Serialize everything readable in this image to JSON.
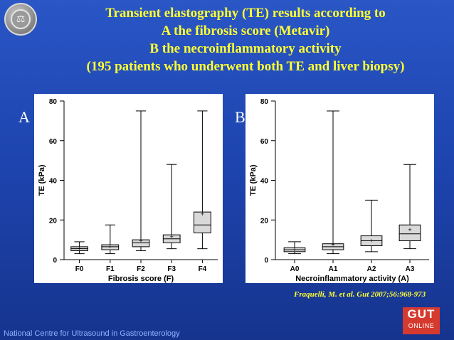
{
  "title_lines": [
    "Transient elastography (TE) results according to",
    "A the fibrosis score  (Metavir)",
    "B the necroinflammatory activity",
    "(195 patients who underwent both TE and liver biopsy)"
  ],
  "panel_letters": [
    "A",
    "B"
  ],
  "colors": {
    "title": "#ffff33",
    "background": "#1e45b0",
    "box_fill": "#d9d9d9"
  },
  "chart_data": [
    {
      "type": "boxplot",
      "ylabel": "TE (kPa)",
      "xlabel": "Fibrosis score (F)",
      "ylim": [
        0,
        80
      ],
      "yticks": [
        "0",
        "20",
        "40",
        "60",
        "80"
      ],
      "categories": [
        "F0",
        "F1",
        "F2",
        "F3",
        "F4"
      ],
      "boxes": [
        {
          "min": 3,
          "q1": 4.5,
          "median": 5.5,
          "q3": 6.5,
          "max": 9,
          "mean": 5.5
        },
        {
          "min": 3,
          "q1": 5,
          "median": 6.5,
          "q3": 7.5,
          "max": 17.5,
          "mean": 6.5
        },
        {
          "min": 4.5,
          "q1": 6.5,
          "median": 8.5,
          "q3": 10,
          "max": 75,
          "mean": 9.5
        },
        {
          "min": 5.5,
          "q1": 8.5,
          "median": 10.5,
          "q3": 12.5,
          "max": 48,
          "mean": 11.5
        },
        {
          "min": 5.5,
          "q1": 13.5,
          "median": 17.5,
          "q3": 24,
          "max": 75,
          "mean": 23
        }
      ],
      "grid": false
    },
    {
      "type": "boxplot",
      "ylabel": "TE (kPa)",
      "xlabel": "Necroinflammatory activity (A)",
      "ylim": [
        0,
        80
      ],
      "yticks": [
        "0",
        "20",
        "40",
        "60",
        "80"
      ],
      "categories": [
        "A0",
        "A1",
        "A2",
        "A3"
      ],
      "boxes": [
        {
          "min": 3,
          "q1": 4,
          "median": 5,
          "q3": 6,
          "max": 9,
          "mean": 5
        },
        {
          "min": 3,
          "q1": 5,
          "median": 6.5,
          "q3": 8,
          "max": 75,
          "mean": 7.5
        },
        {
          "min": 4,
          "q1": 7,
          "median": 9.5,
          "q3": 12,
          "max": 30,
          "mean": 9.5
        },
        {
          "min": 5.5,
          "q1": 9.5,
          "median": 13,
          "q3": 17.5,
          "max": 48,
          "mean": 15
        }
      ],
      "grid": false
    }
  ],
  "citation": "Fraquelli, M. et al. Gut 2007;56:968-973",
  "footer": "National Centre for Ultrasound in Gastroenterology",
  "gut_logo": {
    "line1": "GUT",
    "line2": "ONLINE"
  }
}
